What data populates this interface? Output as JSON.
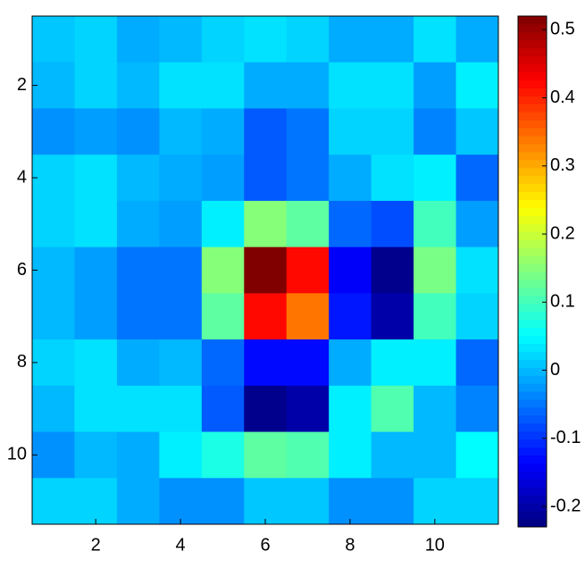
{
  "chart_data": {
    "type": "heatmap",
    "colormap": "jet",
    "clim": [
      -0.23,
      0.52
    ],
    "xlim": [
      0.5,
      11.5
    ],
    "ylim": [
      11.5,
      0.5
    ],
    "xticks": [
      2,
      4,
      6,
      8,
      10
    ],
    "yticks": [
      2,
      4,
      6,
      8,
      10
    ],
    "colorbar_ticks": [
      -0.2,
      -0.1,
      0,
      0.1,
      0.2,
      0.3,
      0.4,
      0.5
    ],
    "values": [
      [
        0.01,
        0.02,
        -0.01,
        0.0,
        0.02,
        0.03,
        0.02,
        -0.01,
        -0.01,
        0.03,
        -0.01
      ],
      [
        0.0,
        0.02,
        0.0,
        0.03,
        0.03,
        -0.01,
        -0.01,
        0.03,
        0.03,
        -0.02,
        0.04
      ],
      [
        -0.03,
        -0.02,
        -0.03,
        0.0,
        -0.01,
        -0.07,
        -0.05,
        0.02,
        0.02,
        -0.04,
        0.01
      ],
      [
        0.02,
        0.03,
        0.0,
        -0.01,
        -0.02,
        -0.07,
        -0.05,
        -0.01,
        0.03,
        0.04,
        -0.06
      ],
      [
        0.02,
        0.03,
        -0.01,
        -0.02,
        0.04,
        0.15,
        0.12,
        -0.06,
        -0.08,
        0.1,
        -0.02
      ],
      [
        0.0,
        -0.02,
        -0.05,
        -0.05,
        0.15,
        0.52,
        0.42,
        -0.14,
        -0.22,
        0.14,
        0.03
      ],
      [
        0.0,
        -0.02,
        -0.05,
        -0.05,
        0.12,
        0.42,
        0.34,
        -0.12,
        -0.2,
        0.1,
        0.02
      ],
      [
        0.02,
        0.03,
        -0.01,
        0.0,
        -0.06,
        -0.13,
        -0.13,
        -0.01,
        0.04,
        0.04,
        -0.06
      ],
      [
        0.0,
        0.03,
        0.03,
        0.03,
        -0.07,
        -0.22,
        -0.2,
        0.04,
        0.11,
        0.0,
        -0.04
      ],
      [
        -0.03,
        0.0,
        -0.01,
        0.04,
        0.07,
        0.12,
        0.11,
        0.04,
        0.0,
        0.0,
        0.05
      ],
      [
        0.02,
        0.02,
        -0.01,
        -0.03,
        -0.03,
        0.01,
        0.01,
        -0.03,
        -0.03,
        0.02,
        0.02
      ]
    ]
  }
}
